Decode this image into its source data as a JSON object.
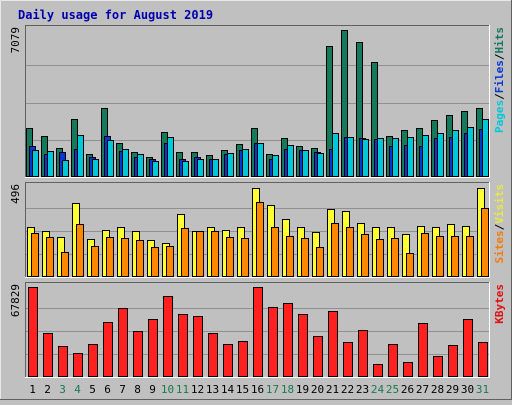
{
  "chart_data": {
    "type": "bar",
    "title": "Daily usage for August 2019",
    "x": [
      "1",
      "2",
      "3",
      "4",
      "5",
      "6",
      "7",
      "8",
      "9",
      "10",
      "11",
      "12",
      "13",
      "14",
      "15",
      "16",
      "17",
      "18",
      "19",
      "20",
      "21",
      "22",
      "23",
      "24",
      "25",
      "26",
      "27",
      "28",
      "29",
      "30",
      "31"
    ],
    "x_label_colors": [
      "#000000",
      "#000000",
      "#1a7a52",
      "#1a7a52",
      "#000000",
      "#000000",
      "#000000",
      "#000000",
      "#000000",
      "#1a7a52",
      "#1a7a52",
      "#000000",
      "#000000",
      "#000000",
      "#000000",
      "#000000",
      "#1a7a52",
      "#1a7a52",
      "#000000",
      "#000000",
      "#000000",
      "#000000",
      "#000000",
      "#1a7a52",
      "#1a7a52",
      "#000000",
      "#000000",
      "#000000",
      "#000000",
      "#000000",
      "#1a7a52"
    ],
    "panels": [
      {
        "max_label": "7079",
        "ymax": 7079,
        "axis_labels": [
          {
            "text": "Pages",
            "color": "#00c8d8"
          },
          {
            "text": "/",
            "color": "#000000"
          },
          {
            "text": "Files",
            "color": "#0a36d6"
          },
          {
            "text": "/",
            "color": "#000000"
          },
          {
            "text": "Hits",
            "color": "#157a5c"
          }
        ],
        "series": [
          {
            "color": "#157a5c",
            "values": [
              2324,
              1944,
              1372,
              2762,
              1085,
              3274,
              1639,
              1181,
              971,
              2152,
              1181,
              1181,
              1067,
              1296,
              1562,
              2323,
              1105,
              1848,
              1486,
              1372,
              6232,
              7000,
              6437,
              5445,
              1963,
              2212,
              2326,
              2706,
              2934,
              3124,
              3277
            ]
          },
          {
            "color": "#0a36d6",
            "values": [
              1486,
              1086,
              1181,
              1334,
              952,
              1943,
              1238,
              952,
              857,
              1620,
              876,
              952,
              838,
              1105,
              1276,
              1620,
              876,
              1334,
              1276,
              1181,
              1334,
              1886,
              1830,
              1791,
              1467,
              1524,
              1486,
              1848,
              1905,
              2096,
              2287
            ]
          },
          {
            "color": "#00c8d8",
            "values": [
              1296,
              1258,
              819,
              2000,
              876,
              1773,
              1334,
              1105,
              781,
              1886,
              781,
              838,
              838,
              1124,
              1314,
              1639,
              1067,
              1524,
              1276,
              1162,
              2096,
              1905,
              1791,
              1867,
              1867,
              1905,
              2000,
              2077,
              2248,
              2382,
              2763
            ]
          }
        ]
      },
      {
        "max_label": "496",
        "ymax": 496,
        "axis_labels": [
          {
            "text": "Sites",
            "color": "#f47a0a"
          },
          {
            "text": "/",
            "color": "#000000"
          },
          {
            "text": "Visits",
            "color": "#e8e840"
          }
        ],
        "series": [
          {
            "color": "#ffff33",
            "values": [
              270,
              249,
              214,
              397,
              203,
              255,
              270,
              249,
              197,
              181,
              338,
              249,
              270,
              255,
              270,
              482,
              389,
              313,
              270,
              242,
              368,
              354,
              290,
              270,
              270,
              230,
              277,
              270,
              284,
              277,
              482
            ]
          },
          {
            "color": "#ff8800",
            "values": [
              235,
              218,
              137,
              285,
              166,
              218,
              208,
              197,
              161,
              166,
              264,
              249,
              249,
              218,
              211,
              407,
              270,
              221,
              208,
              161,
              290,
              270,
              230,
              203,
              211,
              128,
              235,
              221,
              221,
              221,
              373
            ]
          }
        ]
      },
      {
        "max_label": "67829",
        "ymax": 67829,
        "axis_labels": [
          {
            "text": "KBytes",
            "color": "#e01010"
          }
        ],
        "series": [
          {
            "color": "#ff2020",
            "values": [
              66600,
              32630,
              22900,
              17900,
              24400,
              40800,
              50700,
              33800,
              42700,
              59800,
              46300,
              45000,
              32600,
              24400,
              26400,
              66600,
              51600,
              54300,
              46300,
              30400,
              48300,
              25700,
              34600,
              9400,
              24000,
              10700,
              39500,
              15500,
              23300,
              43000,
              25500
            ]
          }
        ]
      }
    ]
  }
}
